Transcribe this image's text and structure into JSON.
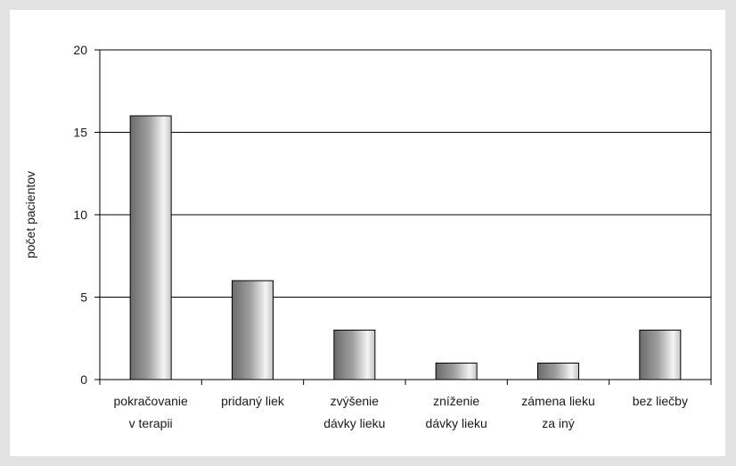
{
  "chart_data": {
    "type": "bar",
    "title": "",
    "xlabel": "",
    "ylabel": "počet pacientov",
    "categories": [
      [
        "pokračovanie",
        "v terapii"
      ],
      [
        "pridaný liek"
      ],
      [
        "zvýšenie",
        "dávky lieku"
      ],
      [
        "zníženie",
        "dávky lieku"
      ],
      [
        "zámena lieku",
        "za iný"
      ],
      [
        "bez liečby"
      ]
    ],
    "values": [
      16,
      6,
      3,
      1,
      1,
      3
    ],
    "ylim": [
      0,
      20
    ],
    "yticks": [
      "0",
      "5",
      "10",
      "15",
      "20"
    ],
    "grid": true,
    "legend": "none",
    "colors": {
      "background": "#e3e3e3",
      "panel": "#ffffff",
      "bar_dark": "#6b6b6b",
      "bar_light": "#f4f4f4",
      "gridline": "#000000"
    }
  }
}
